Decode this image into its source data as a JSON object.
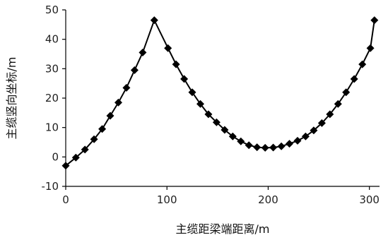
{
  "chart_data": {
    "type": "line",
    "title": "",
    "xlabel": "主缆距梁端距离/m",
    "ylabel": "主缆竖向坐标/m",
    "xlim": [
      0,
      310
    ],
    "ylim": [
      -10,
      50
    ],
    "x_ticks": [
      0,
      100,
      200,
      300
    ],
    "y_ticks": [
      -10,
      0,
      10,
      20,
      30,
      40,
      50
    ],
    "grid": false,
    "legend": "none",
    "marker": "diamond",
    "color": "#000000",
    "series": [
      {
        "x": [
          0,
          10,
          19,
          28,
          36,
          44,
          52,
          60,
          68,
          76,
          87.5,
          101,
          109,
          117,
          125,
          133,
          141,
          149,
          157,
          165,
          173,
          181,
          189,
          197,
          205,
          213,
          221,
          229,
          237,
          245,
          253,
          261,
          269,
          277,
          285,
          293,
          301
        ],
        "values": [
          -3,
          -0.2,
          2.5,
          6,
          9.5,
          14,
          18.5,
          23.5,
          29.5,
          35.5,
          46.5,
          37,
          31.5,
          26.5,
          22,
          18,
          14.5,
          11.8,
          9.2,
          7,
          5.3,
          4,
          3.3,
          3.1,
          3.2,
          3.6,
          4.5,
          5.5,
          7,
          9,
          11.5,
          14.5,
          18,
          22,
          26.5,
          31.5,
          37
        ]
      }
    ],
    "extra_point": {
      "x": 305,
      "y": 46.5
    }
  }
}
